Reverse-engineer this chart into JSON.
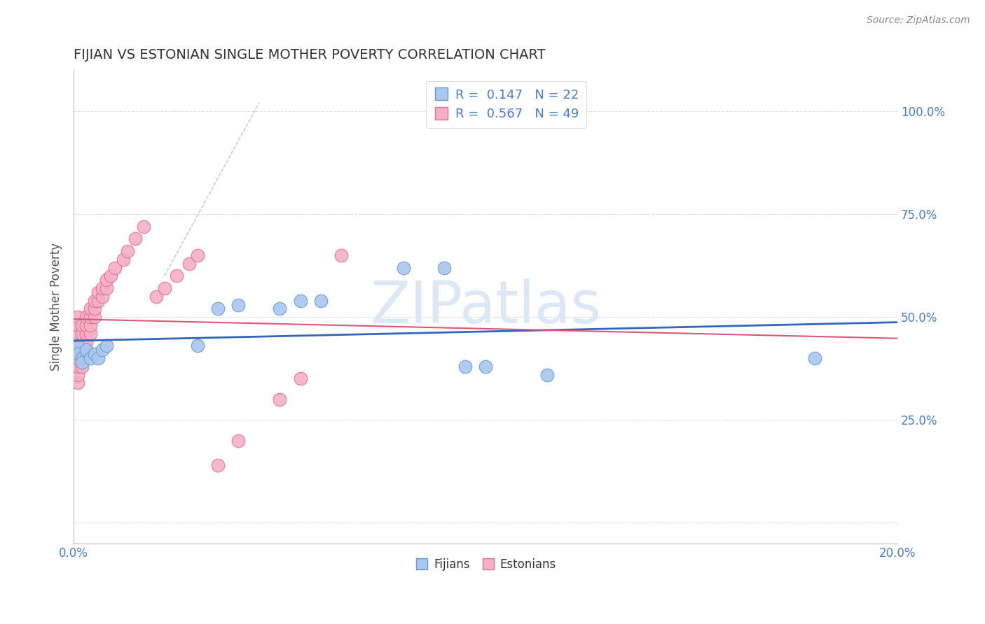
{
  "title": "FIJIAN VS ESTONIAN SINGLE MOTHER POVERTY CORRELATION CHART",
  "source": "Source: ZipAtlas.com",
  "ylabel_label": "Single Mother Poverty",
  "xlim": [
    0.0,
    0.2
  ],
  "ylim": [
    -0.05,
    1.1
  ],
  "fijian_color": "#A8C8F0",
  "estonian_color": "#F5B0C5",
  "fijian_edge_color": "#6699CC",
  "estonian_edge_color": "#E07090",
  "fijian_line_color": "#3366BB",
  "estonian_line_color": "#DD5577",
  "legend_fijian_r": "R =  0.147",
  "legend_fijian_n": "N = 22",
  "legend_estonian_r": "R =  0.567",
  "legend_estonian_n": "N = 49",
  "fijian_x": [
    0.001,
    0.001,
    0.002,
    0.002,
    0.003,
    0.004,
    0.005,
    0.006,
    0.007,
    0.008,
    0.03,
    0.035,
    0.04,
    0.05,
    0.055,
    0.06,
    0.08,
    0.09,
    0.095,
    0.1,
    0.115,
    0.18
  ],
  "fijian_y": [
    0.43,
    0.41,
    0.4,
    0.39,
    0.42,
    0.4,
    0.41,
    0.4,
    0.42,
    0.43,
    0.43,
    0.52,
    0.53,
    0.52,
    0.54,
    0.54,
    0.62,
    0.62,
    0.38,
    0.38,
    0.36,
    0.4
  ],
  "estonian_x": [
    0.001,
    0.001,
    0.001,
    0.001,
    0.001,
    0.001,
    0.001,
    0.001,
    0.001,
    0.002,
    0.002,
    0.002,
    0.002,
    0.002,
    0.002,
    0.003,
    0.003,
    0.003,
    0.003,
    0.003,
    0.004,
    0.004,
    0.004,
    0.004,
    0.005,
    0.005,
    0.005,
    0.006,
    0.006,
    0.007,
    0.007,
    0.008,
    0.008,
    0.009,
    0.01,
    0.012,
    0.013,
    0.015,
    0.017,
    0.02,
    0.022,
    0.025,
    0.028,
    0.03,
    0.035,
    0.04,
    0.05,
    0.055,
    0.065
  ],
  "estonian_y": [
    0.34,
    0.36,
    0.38,
    0.4,
    0.42,
    0.44,
    0.46,
    0.48,
    0.5,
    0.38,
    0.4,
    0.42,
    0.44,
    0.46,
    0.48,
    0.42,
    0.44,
    0.46,
    0.48,
    0.5,
    0.46,
    0.48,
    0.5,
    0.52,
    0.5,
    0.52,
    0.54,
    0.54,
    0.56,
    0.55,
    0.57,
    0.57,
    0.59,
    0.6,
    0.62,
    0.64,
    0.66,
    0.69,
    0.72,
    0.55,
    0.57,
    0.6,
    0.63,
    0.65,
    0.14,
    0.2,
    0.3,
    0.35,
    0.65
  ],
  "background_color": "#FFFFFF",
  "grid_color": "#DDDDDD",
  "title_color": "#333333",
  "axis_label_color": "#555555",
  "tick_color": "#4A7CC9",
  "watermark_color": "#DCE8F5"
}
